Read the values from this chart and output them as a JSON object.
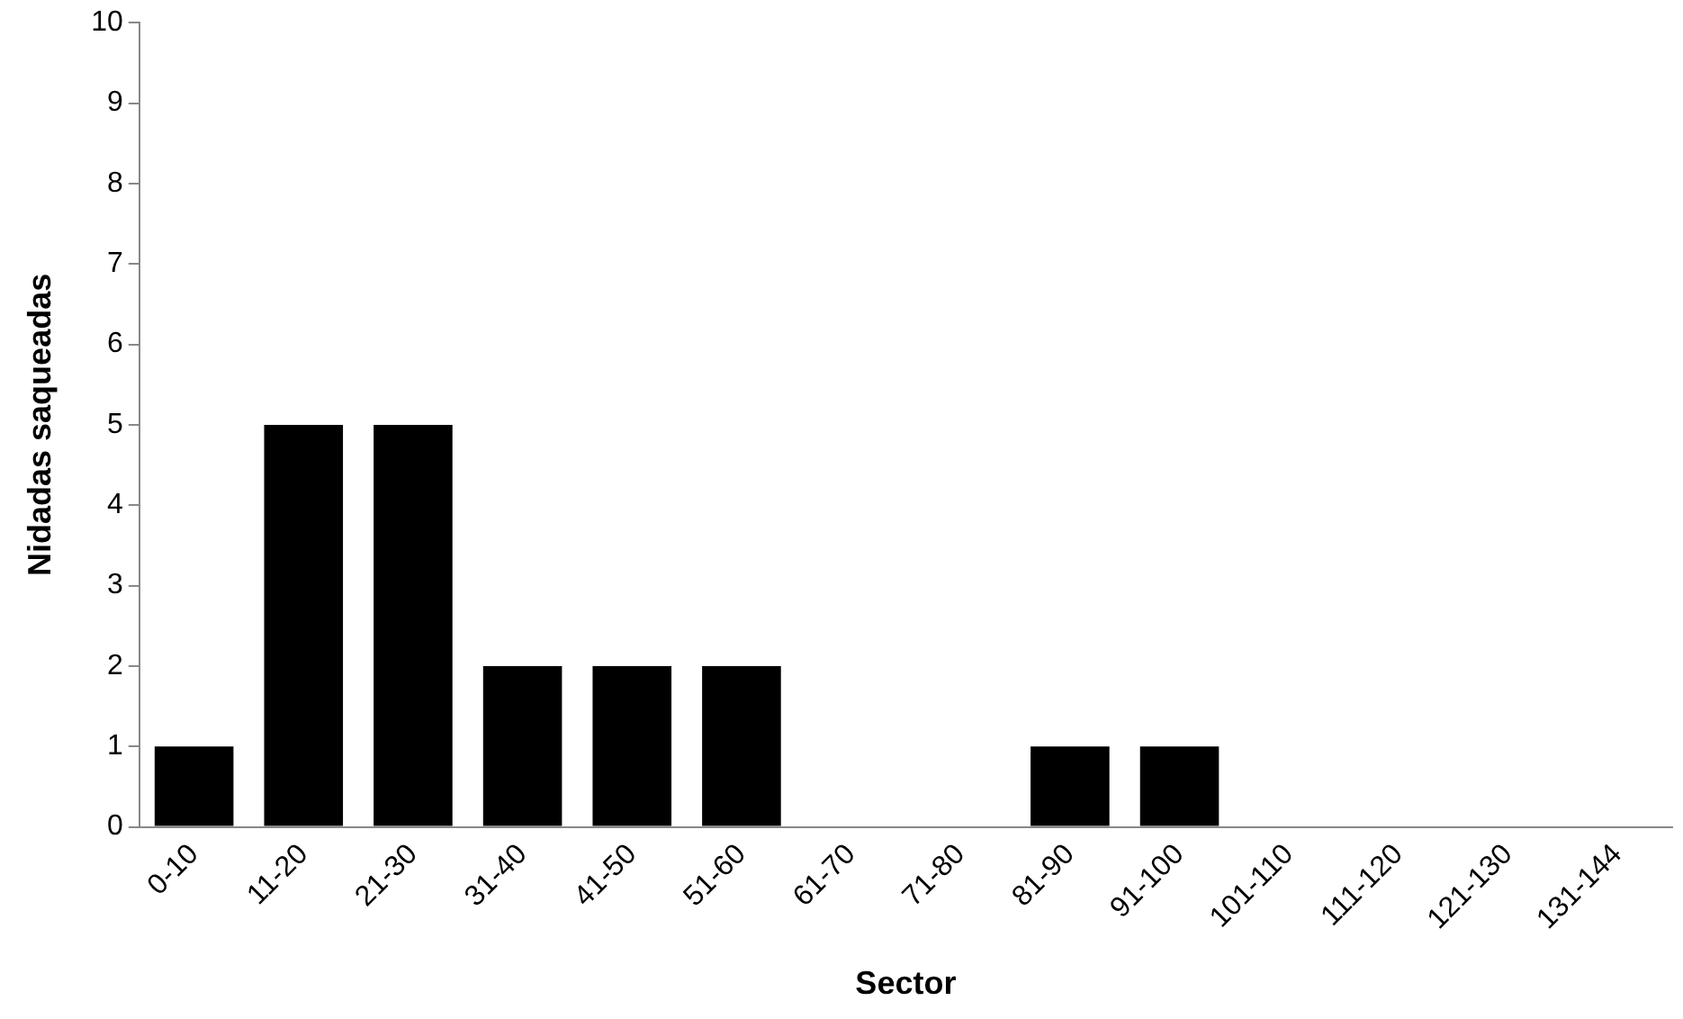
{
  "chart_data": {
    "type": "bar",
    "xlabel": "Sector",
    "ylabel": "Nidadas saqueadas",
    "categories": [
      "0-10",
      "11-20",
      "21-30",
      "31-40",
      "41-50",
      "51-60",
      "61-70",
      "71-80",
      "81-90",
      "91-100",
      "101-110",
      "111-120",
      "121-130",
      "131-144"
    ],
    "values": [
      1,
      5,
      5,
      2,
      2,
      2,
      0,
      0,
      1,
      1,
      0,
      0,
      0,
      0
    ],
    "color": "#000000",
    "ylim": [
      0,
      10
    ],
    "yticks": [
      0,
      1,
      2,
      3,
      4,
      5,
      6,
      7,
      8,
      9,
      10
    ],
    "grid": false,
    "legend": false
  }
}
